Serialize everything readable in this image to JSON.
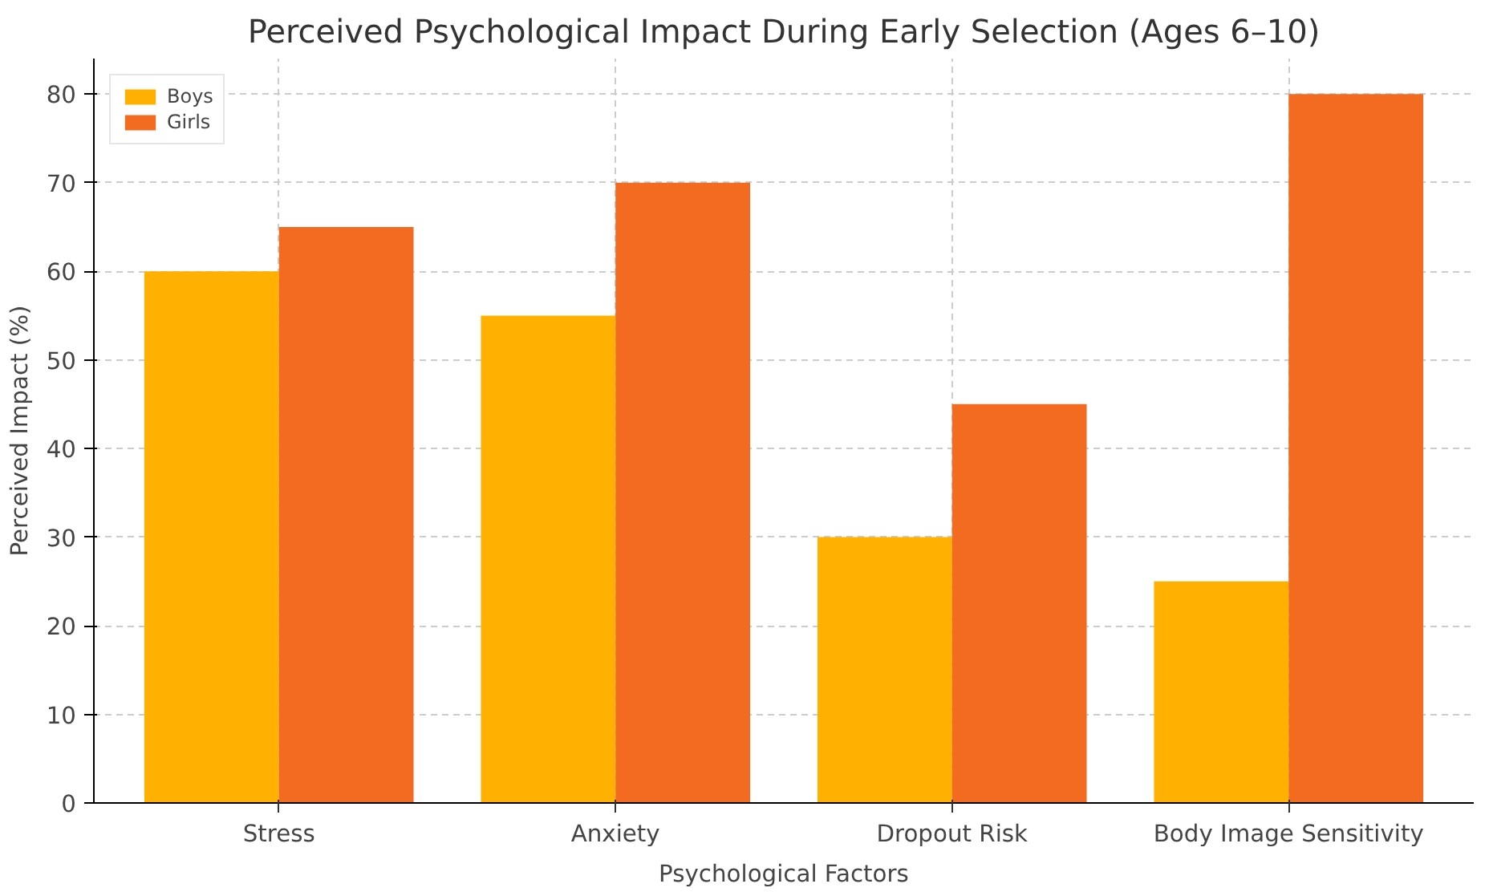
{
  "chart_data": {
    "type": "bar",
    "title": "Perceived Psychological Impact During Early Selection (Ages 6–10)",
    "xlabel": "Psychological Factors",
    "ylabel": "Perceived Impact (%)",
    "categories": [
      "Stress",
      "Anxiety",
      "Dropout Risk",
      "Body Image Sensitivity"
    ],
    "series": [
      {
        "name": "Boys",
        "color": "#ffb000",
        "values": [
          60,
          55,
          30,
          25
        ]
      },
      {
        "name": "Girls",
        "color": "#f26b21",
        "values": [
          65,
          70,
          45,
          80
        ]
      }
    ],
    "ylim": [
      0,
      84
    ],
    "yticks": [
      0,
      10,
      20,
      30,
      40,
      50,
      60,
      70,
      80
    ],
    "grid": true,
    "legend": "top left"
  }
}
